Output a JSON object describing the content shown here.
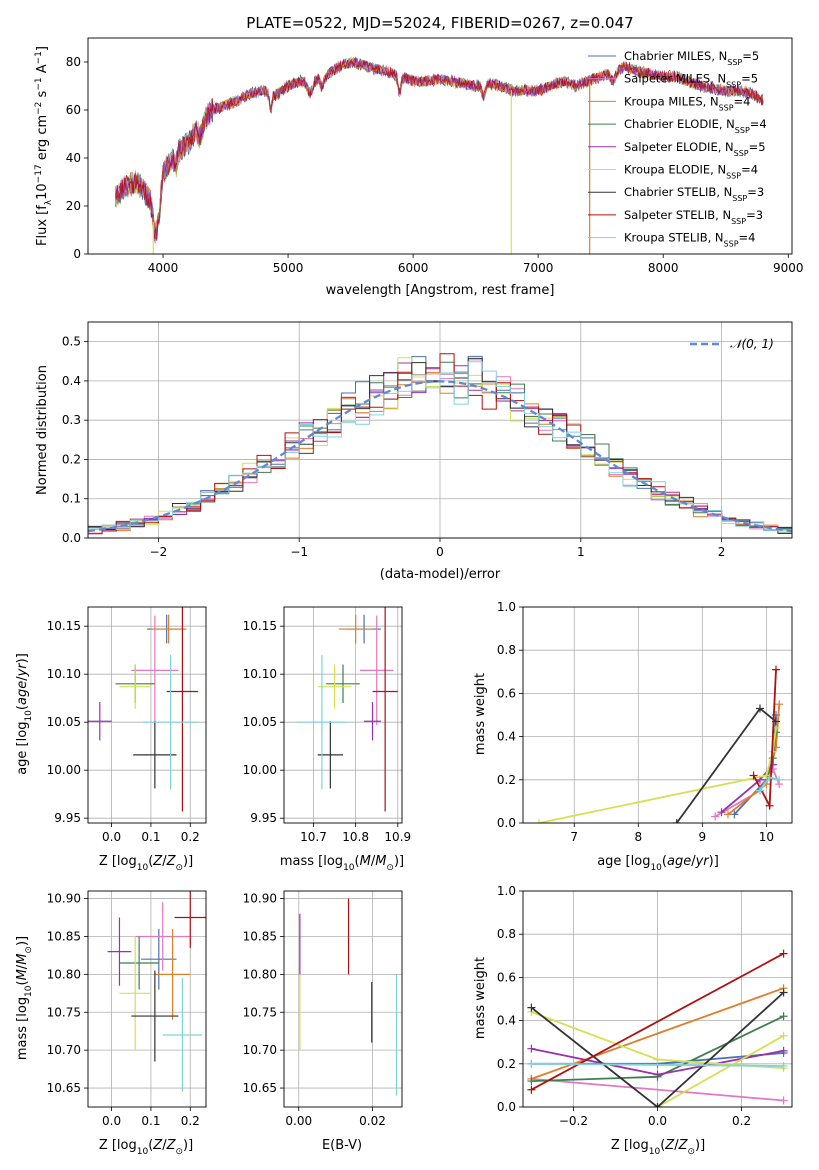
{
  "colors": {
    "Chabrier MILES": "#4C72B0",
    "Salpeter MILES": "#E377C2",
    "Kroupa MILES": "#DD7F2A",
    "Chabrier ELODIE": "#3F7F4F",
    "Salpeter ELODIE": "#9B30B0",
    "Kroupa ELODIE": "#D4E050",
    "Chabrier STELIB": "#333333",
    "Salpeter STELIB": "#B01010",
    "Kroupa STELIB": "#7FD3DD",
    "normal": "#5B8BD8"
  },
  "chart_data": [
    {
      "id": "spectrum",
      "type": "line",
      "title": "PLATE=0522, MJD=52024, FIBERID=0267, z=0.047",
      "xlabel": "wavelength [Angstrom, rest frame]",
      "ylabel": "Flux [f_λ10^-17 erg cm^-2 s^-1 A^-1]",
      "xlim": [
        3400,
        9030
      ],
      "ylim": [
        0,
        90
      ],
      "xticks": [
        "4000",
        "5000",
        "6000",
        "7000",
        "8000",
        "9000"
      ],
      "yticks": [
        "0",
        "20",
        "40",
        "60",
        "80"
      ],
      "grid": false,
      "legend": "upper right",
      "x": [
        3620,
        3700,
        3800,
        3900,
        3950,
        4000,
        4100,
        4200,
        4300,
        4400,
        4500,
        4600,
        4700,
        4800,
        4900,
        5000,
        5100,
        5200,
        5300,
        5400,
        5500,
        5600,
        5700,
        5800,
        5900,
        6000,
        6100,
        6200,
        6300,
        6400,
        6500,
        6600,
        6700,
        6800,
        6900,
        7000,
        7100,
        7200,
        7300,
        7400,
        7500,
        7600,
        7700,
        7800,
        7900,
        8000,
        8100,
        8200,
        8300,
        8400,
        8500,
        8600,
        8700,
        8800
      ],
      "y": [
        24,
        28,
        30,
        22,
        18,
        34,
        42,
        46,
        55,
        60,
        62,
        64,
        67,
        68,
        66,
        70,
        72,
        72,
        74,
        78,
        80,
        79,
        77,
        76,
        74,
        72,
        72,
        73,
        72,
        71,
        70,
        71,
        70,
        68,
        68,
        68,
        70,
        72,
        70,
        72,
        74,
        76,
        78,
        76,
        75,
        74,
        74,
        72,
        70,
        69,
        68,
        68,
        67,
        64
      ],
      "series": [
        {
          "name": "Chabrier MILES, N_SSP=5"
        },
        {
          "name": "Salpeter MILES, N_SSP=5"
        },
        {
          "name": "Kroupa MILES, N_SSP=4"
        },
        {
          "name": "Chabrier ELODIE, N_SSP=4"
        },
        {
          "name": "Salpeter ELODIE, N_SSP=5"
        },
        {
          "name": "Kroupa ELODIE, N_SSP=4"
        },
        {
          "name": "Chabrier STELIB, N_SSP=3"
        },
        {
          "name": "Salpeter STELIB, N_SSP=3"
        },
        {
          "name": "Kroupa STELIB, N_SSP=4"
        }
      ]
    },
    {
      "id": "residuals",
      "type": "bar",
      "xlabel": "(data-model)/error",
      "ylabel": "Normed distribution",
      "xlim": [
        -2.5,
        2.5
      ],
      "ylim": [
        0,
        0.55
      ],
      "xticks": [
        "−2",
        "−1",
        "0",
        "1",
        "2"
      ],
      "yticks": [
        "0.0",
        "0.1",
        "0.2",
        "0.3",
        "0.4",
        "0.5"
      ],
      "grid": true,
      "legend": "upper right",
      "legend_label": "N(0,1)",
      "bin_width": 0.1,
      "series_note": "step histograms of the nine models, approximately following N(0,1)"
    },
    {
      "id": "age-vs-Z",
      "type": "scatter",
      "xlabel": "Z [log10(Z/Z⊙)]",
      "ylabel": "age [log10(age/yr)]",
      "xlim": [
        -0.06,
        0.24
      ],
      "ylim": [
        9.945,
        10.17
      ],
      "xticks": [
        "0.0",
        "0.1",
        "0.2"
      ],
      "yticks": [
        "9.95",
        "10.00",
        "10.05",
        "10.10",
        "10.15"
      ],
      "grid": true,
      "points": [
        {
          "model": "Chabrier MILES",
          "x": 0.14,
          "xerr": 0.05,
          "y": 10.147,
          "yerr": 0.015
        },
        {
          "model": "Salpeter MILES",
          "x": 0.11,
          "xerr": 0.06,
          "y": 10.104,
          "yerr": 0.057
        },
        {
          "model": "Kroupa MILES",
          "x": 0.145,
          "xerr": 0.045,
          "y": 10.147,
          "yerr": 0.015
        },
        {
          "model": "Chabrier ELODIE",
          "x": 0.06,
          "xerr": 0.05,
          "y": 10.09,
          "yerr": 0.02
        },
        {
          "model": "Salpeter ELODIE",
          "x": -0.03,
          "xerr": 0.03,
          "y": 10.051,
          "yerr": 0.02
        },
        {
          "model": "Kroupa ELODIE",
          "x": 0.06,
          "xerr": 0.04,
          "y": 10.087,
          "yerr": 0.023
        },
        {
          "model": "Chabrier STELIB",
          "x": 0.11,
          "xerr": 0.055,
          "y": 10.016,
          "yerr": 0.035
        },
        {
          "model": "Salpeter STELIB",
          "x": 0.18,
          "xerr": 0.04,
          "y": 10.082,
          "yerr": 0.125
        },
        {
          "model": "Kroupa STELIB",
          "x": 0.15,
          "xerr": 0.07,
          "y": 10.05,
          "yerr": 0.07
        }
      ]
    },
    {
      "id": "age-vs-mass",
      "type": "scatter",
      "xlabel": "mass [log10(M/M⊙)]",
      "ylabel": "",
      "xlim": [
        10.63,
        10.91
      ],
      "ylim": [
        9.945,
        10.17
      ],
      "xticks": [
        "10.7",
        "10.8",
        "10.9"
      ],
      "yticks": [
        "9.95",
        "10.00",
        "10.05",
        "10.10",
        "10.15"
      ],
      "grid": true,
      "points": [
        {
          "model": "Chabrier MILES",
          "x": 10.82,
          "xerr": 0.04,
          "y": 10.147,
          "yerr": 0.015
        },
        {
          "model": "Salpeter MILES",
          "x": 10.85,
          "xerr": 0.04,
          "y": 10.104,
          "yerr": 0.057
        },
        {
          "model": "Kroupa MILES",
          "x": 10.8,
          "xerr": 0.04,
          "y": 10.147,
          "yerr": 0.015
        },
        {
          "model": "Chabrier ELODIE",
          "x": 10.77,
          "xerr": 0.04,
          "y": 10.09,
          "yerr": 0.02
        },
        {
          "model": "Salpeter ELODIE",
          "x": 10.84,
          "xerr": 0.02,
          "y": 10.051,
          "yerr": 0.02
        },
        {
          "model": "Kroupa ELODIE",
          "x": 10.75,
          "xerr": 0.04,
          "y": 10.087,
          "yerr": 0.023
        },
        {
          "model": "Chabrier STELIB",
          "x": 10.74,
          "xerr": 0.03,
          "y": 10.016,
          "yerr": 0.035
        },
        {
          "model": "Salpeter STELIB",
          "x": 10.87,
          "xerr": 0.03,
          "y": 10.082,
          "yerr": 0.125
        },
        {
          "model": "Kroupa STELIB",
          "x": 10.72,
          "xerr": 0.06,
          "y": 10.05,
          "yerr": 0.07
        }
      ]
    },
    {
      "id": "weight-vs-age",
      "type": "line",
      "xlabel": "age [log10(age/yr)]",
      "ylabel": "mass weight",
      "xlim": [
        6.2,
        10.4
      ],
      "ylim": [
        0,
        1
      ],
      "xticks": [
        "7",
        "8",
        "9",
        "10"
      ],
      "yticks": [
        "0.0",
        "0.2",
        "0.4",
        "0.6",
        "0.8",
        "1.0"
      ],
      "grid": true,
      "series": [
        {
          "model": "Chabrier MILES",
          "x": [
            9.5,
            10.0,
            10.1,
            10.15
          ],
          "y": [
            0.04,
            0.2,
            0.27,
            0.5
          ]
        },
        {
          "model": "Salpeter MILES",
          "x": [
            9.2,
            9.9,
            10.1,
            10.2
          ],
          "y": [
            0.03,
            0.15,
            0.25,
            0.18
          ]
        },
        {
          "model": "Kroupa MILES",
          "x": [
            9.4,
            10.0,
            10.15,
            10.2
          ],
          "y": [
            0.04,
            0.18,
            0.35,
            0.55
          ]
        },
        {
          "model": "Chabrier ELODIE",
          "x": [
            10.0,
            10.1,
            10.15
          ],
          "y": [
            0.2,
            0.3,
            0.42
          ]
        },
        {
          "model": "Salpeter ELODIE",
          "x": [
            9.3,
            9.9,
            10.1
          ],
          "y": [
            0.05,
            0.2,
            0.27
          ]
        },
        {
          "model": "Kroupa ELODIE",
          "x": [
            6.45,
            10.0,
            10.1,
            10.15
          ],
          "y": [
            0.0,
            0.22,
            0.33,
            0.44
          ]
        },
        {
          "model": "Chabrier STELIB",
          "x": [
            8.6,
            9.9,
            10.15
          ],
          "y": [
            0.0,
            0.53,
            0.47
          ]
        },
        {
          "model": "Salpeter STELIB",
          "x": [
            9.8,
            10.05,
            10.15
          ],
          "y": [
            0.22,
            0.08,
            0.71
          ]
        },
        {
          "model": "Kroupa STELIB",
          "x": [
            9.9,
            10.05,
            10.2
          ],
          "y": [
            0.15,
            0.21,
            0.2
          ]
        }
      ]
    },
    {
      "id": "mass-vs-Z",
      "type": "scatter",
      "xlabel": "Z [log10(Z/Z⊙)]",
      "ylabel": "mass [log10(M/M⊙)]",
      "xlim": [
        -0.06,
        0.24
      ],
      "ylim": [
        10.625,
        10.91
      ],
      "xticks": [
        "0.0",
        "0.1",
        "0.2"
      ],
      "yticks": [
        "10.65",
        "10.70",
        "10.75",
        "10.80",
        "10.85",
        "10.90"
      ],
      "grid": true,
      "points": [
        {
          "model": "Chabrier MILES",
          "x": 0.12,
          "xerr": 0.045,
          "y": 10.82,
          "yerr": 0.04
        },
        {
          "model": "Salpeter MILES",
          "x": 0.13,
          "xerr": 0.07,
          "y": 10.85,
          "yerr": 0.045
        },
        {
          "model": "Kroupa MILES",
          "x": 0.155,
          "xerr": 0.045,
          "y": 10.8,
          "yerr": 0.06
        },
        {
          "model": "Chabrier ELODIE",
          "x": 0.07,
          "xerr": 0.05,
          "y": 10.815,
          "yerr": 0.035
        },
        {
          "model": "Salpeter ELODIE",
          "x": 0.02,
          "xerr": 0.03,
          "y": 10.83,
          "yerr": 0.045
        },
        {
          "model": "Kroupa ELODIE",
          "x": 0.06,
          "xerr": 0.04,
          "y": 10.775,
          "yerr": 0.075
        },
        {
          "model": "Chabrier STELIB",
          "x": 0.11,
          "xerr": 0.06,
          "y": 10.745,
          "yerr": 0.06
        },
        {
          "model": "Salpeter STELIB",
          "x": 0.2,
          "xerr": 0.04,
          "y": 10.875,
          "yerr": 0.04
        },
        {
          "model": "Kroupa STELIB",
          "x": 0.18,
          "xerr": 0.05,
          "y": 10.72,
          "yerr": 0.075
        }
      ]
    },
    {
      "id": "mass-vs-EBV",
      "type": "scatter",
      "xlabel": "E(B-V)",
      "ylabel": "",
      "xlim": [
        -0.004,
        0.028
      ],
      "ylim": [
        10.625,
        10.91
      ],
      "xticks": [
        "0.00",
        "0.02"
      ],
      "yticks": [
        "10.65",
        "10.70",
        "10.75",
        "10.80",
        "10.85",
        "10.90"
      ],
      "grid": true,
      "points": [
        {
          "model": "Salpeter ELODIE",
          "x": 0.0003,
          "y": 10.84,
          "yerr": 0.04
        },
        {
          "model": "Kroupa ELODIE",
          "x": 0.0003,
          "y": 10.75,
          "yerr": 0.05
        },
        {
          "model": "Salpeter STELIB",
          "x": 0.0135,
          "y": 10.85,
          "yerr": 0.05
        },
        {
          "model": "Chabrier STELIB",
          "x": 0.0198,
          "y": 10.75,
          "yerr": 0.04
        },
        {
          "model": "Kroupa STELIB",
          "x": 0.0265,
          "y": 10.72,
          "yerr": 0.08
        }
      ]
    },
    {
      "id": "weight-vs-Z",
      "type": "line",
      "xlabel": "Z [log10(Z/Z⊙)]",
      "ylabel": "mass weight",
      "xlim": [
        -0.32,
        0.32
      ],
      "ylim": [
        0,
        1
      ],
      "xticks": [
        "−0.2",
        "0.0",
        "0.2"
      ],
      "yticks": [
        "0.0",
        "0.2",
        "0.4",
        "0.6",
        "0.8",
        "1.0"
      ],
      "grid": true,
      "series": [
        {
          "model": "Chabrier MILES",
          "x": [
            -0.3,
            0.0,
            0.3
          ],
          "y": [
            0.2,
            0.2,
            0.25
          ]
        },
        {
          "model": "Salpeter MILES",
          "x": [
            -0.3,
            0.3
          ],
          "y": [
            0.13,
            0.03
          ]
        },
        {
          "model": "Kroupa MILES",
          "x": [
            -0.3,
            0.3
          ],
          "y": [
            0.13,
            0.55
          ]
        },
        {
          "model": "Chabrier ELODIE",
          "x": [
            -0.3,
            0.0,
            0.3
          ],
          "y": [
            0.12,
            0.14,
            0.42
          ]
        },
        {
          "model": "Salpeter ELODIE",
          "x": [
            -0.3,
            0.0,
            0.3
          ],
          "y": [
            0.27,
            0.15,
            0.26
          ]
        },
        {
          "model": "Kroupa ELODIE",
          "x": [
            -0.3,
            0.0,
            0.3
          ],
          "y": [
            0.44,
            0.22,
            0.18
          ]
        },
        {
          "model": "Kroupa ELODIE",
          "x": [
            0.0,
            0.3
          ],
          "y": [
            0.0,
            0.33
          ]
        },
        {
          "model": "Chabrier STELIB",
          "x": [
            -0.3,
            0.0,
            0.3
          ],
          "y": [
            0.46,
            0.0,
            0.53
          ]
        },
        {
          "model": "Salpeter STELIB",
          "x": [
            -0.3,
            0.3
          ],
          "y": [
            0.08,
            0.71
          ]
        },
        {
          "model": "Kroupa STELIB",
          "x": [
            -0.3,
            0.3
          ],
          "y": [
            0.2,
            0.19
          ]
        }
      ]
    }
  ]
}
